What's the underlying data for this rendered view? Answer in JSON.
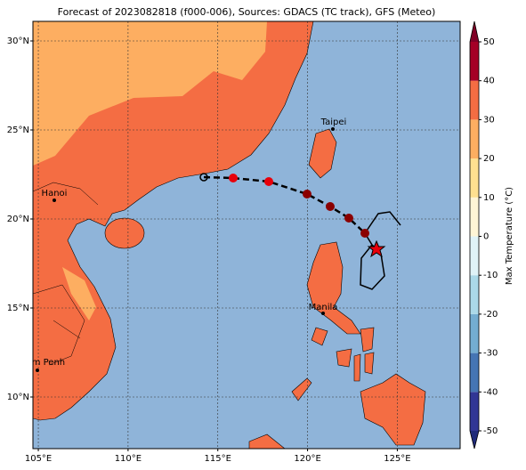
{
  "map": {
    "title": "Forecast of 2023082818 (f000-006), Sources: GDACS (TC track), GFS (Meteo)",
    "xlim": [
      104.7,
      128.5
    ],
    "ylim": [
      7.1,
      31.1
    ],
    "xticks": [
      {
        "value": 105,
        "label": "105°E"
      },
      {
        "value": 110,
        "label": "110°E"
      },
      {
        "value": 115,
        "label": "115°E"
      },
      {
        "value": 120,
        "label": "120°E"
      },
      {
        "value": 125,
        "label": "125°E"
      }
    ],
    "yticks": [
      {
        "value": 10,
        "label": "10°N"
      },
      {
        "value": 15,
        "label": "15°N"
      },
      {
        "value": 20,
        "label": "20°N"
      },
      {
        "value": 25,
        "label": "25°N"
      },
      {
        "value": 30,
        "label": "30°N"
      }
    ],
    "cities": [
      "Taipei",
      "Hanoi",
      "Manila",
      "Phnom Penh"
    ],
    "colorbar": {
      "label": "Max Temperature (°C)",
      "lim": [
        -50,
        50
      ],
      "ticks": [
        -50,
        -40,
        -30,
        -20,
        -10,
        0,
        10,
        20,
        30,
        40,
        50
      ],
      "colors": [
        "#313695",
        "#4575b4",
        "#74add1",
        "#abd9e9",
        "#e0f3f8",
        "#fff5d6",
        "#fee090",
        "#fdae61",
        "#f46d43",
        "#a50026"
      ],
      "under": "#1f2a7a",
      "over": "#800026"
    }
  }
}
